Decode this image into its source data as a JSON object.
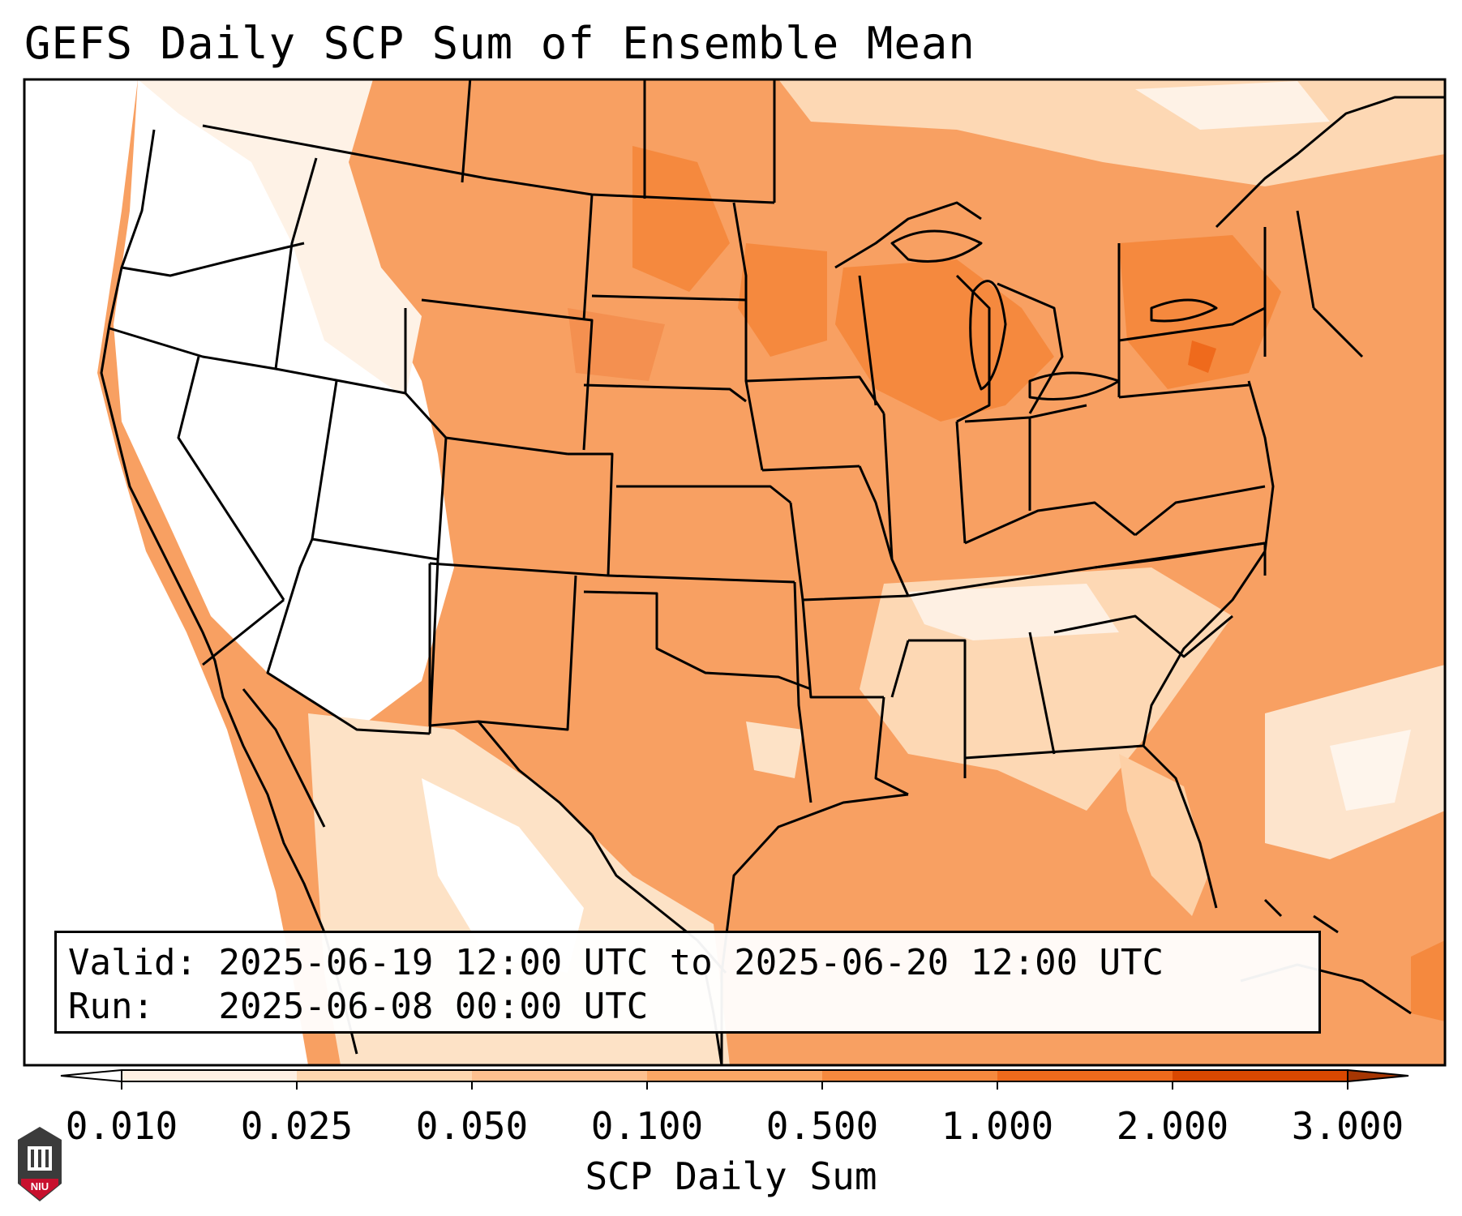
{
  "title": "GEFS Daily SCP Sum of Ensemble Mean",
  "info": {
    "valid_label": "Valid:",
    "valid_value": "2025-06-19 12:00 UTC to 2025-06-20 12:00 UTC",
    "run_label": "Run:",
    "run_value": "2025-06-08 00:00 UTC"
  },
  "colorbar": {
    "label": "SCP Daily Sum",
    "ticks": [
      "0.010",
      "0.025",
      "0.050",
      "0.100",
      "0.500",
      "1.000",
      "2.000",
      "3.000"
    ],
    "colors": [
      "#fef0e3",
      "#fdd7b0",
      "#fdc08f",
      "#fba765",
      "#f5893e",
      "#ef6a1c",
      "#d94801"
    ]
  },
  "logo": {
    "text": "NIU",
    "color": "#c8102e"
  }
}
